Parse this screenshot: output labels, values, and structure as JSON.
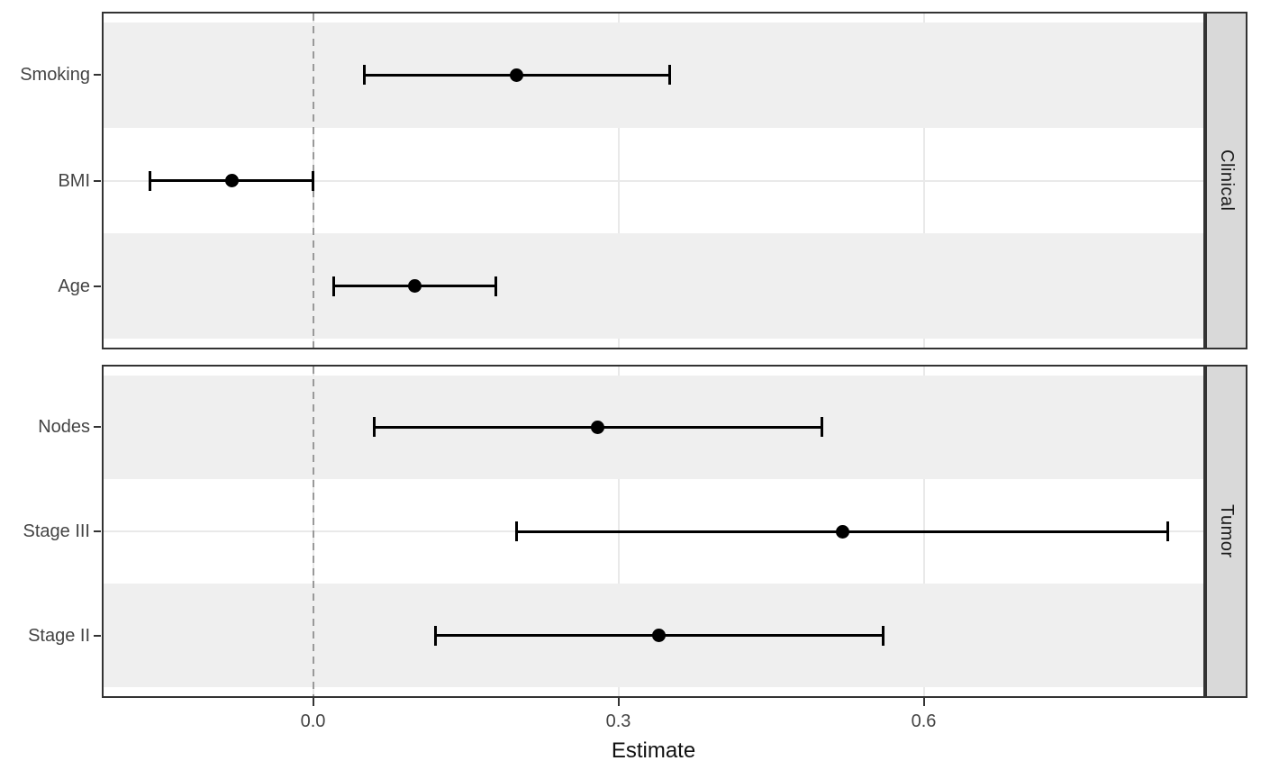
{
  "chart_data": {
    "type": "scatter",
    "subtype": "forest-plot-with-ci-errorbars",
    "xlabel": "Estimate",
    "x_ticks": [
      {
        "value": 0.0,
        "label": "0.0"
      },
      {
        "value": 0.3,
        "label": "0.3"
      },
      {
        "value": 0.6,
        "label": "0.6"
      }
    ],
    "xlim": [
      -0.2075,
      0.8765
    ],
    "zero_line": 0.0,
    "legend": "none",
    "grid": "major-only",
    "facets": [
      {
        "label": "Clinical",
        "rows": [
          {
            "term": "Smoking",
            "estimate": 0.2,
            "ci_low": 0.05,
            "ci_high": 0.35
          },
          {
            "term": "BMI",
            "estimate": -0.08,
            "ci_low": -0.16,
            "ci_high": 0.0
          },
          {
            "term": "Age",
            "estimate": 0.1,
            "ci_low": 0.02,
            "ci_high": 0.18
          }
        ]
      },
      {
        "label": "Tumor",
        "rows": [
          {
            "term": "Nodes",
            "estimate": 0.28,
            "ci_low": 0.06,
            "ci_high": 0.5
          },
          {
            "term": "Stage III",
            "estimate": 0.52,
            "ci_low": 0.2,
            "ci_high": 0.84
          },
          {
            "term": "Stage II",
            "estimate": 0.34,
            "ci_low": 0.12,
            "ci_high": 0.56
          }
        ]
      }
    ],
    "colors": {
      "stripe": "#efefef",
      "grid": "#e9e9e9",
      "strip_bg": "#d9d9d9",
      "border": "#333333",
      "zero_line": "#999999",
      "axis_text": "#444444",
      "data": "#000000"
    }
  }
}
